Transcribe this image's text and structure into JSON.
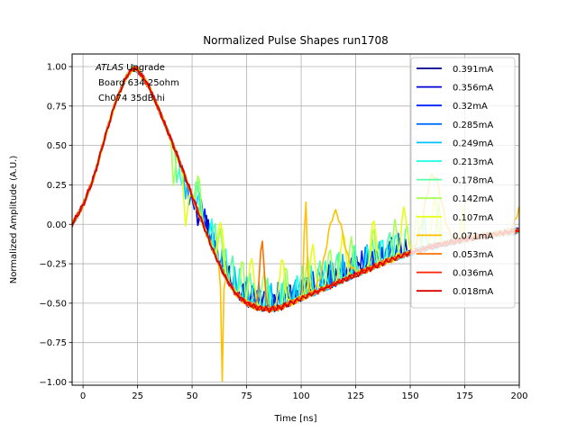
{
  "chart_data": {
    "type": "line",
    "title": "Normalized Pulse Shapes run1708",
    "xlabel": "Time [ns]",
    "ylabel": "Normalized Amplitude (A.U.)",
    "xlim": [
      -5,
      200
    ],
    "ylim": [
      -1.02,
      1.08
    ],
    "xticks": [
      0,
      25,
      50,
      75,
      100,
      125,
      150,
      175,
      200
    ],
    "yticks": [
      -1.0,
      -0.75,
      -0.5,
      -0.25,
      0.0,
      0.25,
      0.5,
      0.75,
      1.0
    ],
    "xtick_labels": [
      "0",
      "25",
      "50",
      "75",
      "100",
      "125",
      "150",
      "175",
      "200"
    ],
    "ytick_labels": [
      "−1.00",
      "−0.75",
      "−0.50",
      "−0.25",
      "0.00",
      "0.25",
      "0.50",
      "0.75",
      "1.00"
    ],
    "grid": true,
    "legend_position": "top-right",
    "annotations": [
      {
        "text": "ATLAS",
        "style": "italic"
      },
      {
        "text": " Upgrade",
        "style": "normal"
      },
      {
        "text": "Board 634 25ohm",
        "style": "normal"
      },
      {
        "text": "Ch074 35dB hi",
        "style": "normal"
      }
    ],
    "base_shape": {
      "x": [
        -5,
        0,
        5,
        10,
        15,
        20,
        23,
        25,
        30,
        35,
        40,
        45,
        50,
        55,
        60,
        65,
        70,
        75,
        80,
        85,
        90,
        95,
        100,
        110,
        120,
        130,
        140,
        150,
        160,
        170,
        180,
        190,
        200
      ],
      "y": [
        0.0,
        0.12,
        0.3,
        0.55,
        0.78,
        0.94,
        0.99,
        0.98,
        0.88,
        0.72,
        0.55,
        0.37,
        0.18,
        0.0,
        -0.18,
        -0.33,
        -0.44,
        -0.5,
        -0.53,
        -0.54,
        -0.53,
        -0.5,
        -0.47,
        -0.41,
        -0.35,
        -0.29,
        -0.23,
        -0.18,
        -0.14,
        -0.11,
        -0.08,
        -0.06,
        -0.04
      ]
    },
    "series": [
      {
        "name": "0.391mA",
        "color": "#00008f",
        "spike_start": 52,
        "spike_period": 3.5,
        "spike_depth": -0.1,
        "spike_rise": 0.12,
        "ringing_end": 150
      },
      {
        "name": "0.356mA",
        "color": "#0000d6",
        "spike_start": 52,
        "spike_period": 4.0,
        "spike_depth": -0.1,
        "spike_rise": 0.12,
        "ringing_end": 148
      },
      {
        "name": "0.32mA",
        "color": "#0020ff",
        "spike_start": 50,
        "spike_period": 4.5,
        "spike_depth": -0.12,
        "spike_rise": 0.13,
        "ringing_end": 146
      },
      {
        "name": "0.285mA",
        "color": "#0070ff",
        "spike_start": 48,
        "spike_period": 5.0,
        "spike_depth": -0.14,
        "spike_rise": 0.15,
        "ringing_end": 145
      },
      {
        "name": "0.249mA",
        "color": "#00c0ff",
        "spike_start": 46,
        "spike_period": 5.5,
        "spike_depth": -0.16,
        "spike_rise": 0.16,
        "ringing_end": 145
      },
      {
        "name": "0.213mA",
        "color": "#1affe6",
        "spike_start": 44,
        "spike_period": 6.5,
        "spike_depth": -0.18,
        "spike_rise": 0.18,
        "ringing_end": 145
      },
      {
        "name": "0.178mA",
        "color": "#53ffa6",
        "spike_start": 42,
        "spike_period": 8.0,
        "spike_depth": -0.2,
        "spike_rise": 0.2,
        "ringing_end": 160
      },
      {
        "name": "0.142mA",
        "color": "#a6ff53",
        "spike_start": 40,
        "spike_period": 10.0,
        "spike_depth": -0.25,
        "spike_rise": 0.25,
        "ringing_end": 165
      },
      {
        "name": "0.107mA",
        "color": "#e6ff1a",
        "spike_start": 45,
        "spike_period": 14.0,
        "spike_depth": -0.3,
        "spike_rise": 0.3,
        "ringing_end": 175
      },
      {
        "name": "0.071mA",
        "color": "#ffc000",
        "spike_start": 57,
        "spike_period": 45.0,
        "spike_depth": -0.72,
        "spike_rise": 0.45,
        "ringing_end": 200
      },
      {
        "name": "0.053mA",
        "color": "#ff7000",
        "spike_start": 73,
        "spike_period": 200.0,
        "spike_depth": -0.93,
        "spike_rise": -0.12,
        "ringing_end": 82
      },
      {
        "name": "0.036mA",
        "color": "#ff2000",
        "spike_start": 200,
        "spike_period": 200.0,
        "spike_depth": 0.0,
        "spike_rise": 0.0,
        "ringing_end": 0
      },
      {
        "name": "0.018mA",
        "color": "#d60000",
        "spike_start": 200,
        "spike_period": 200.0,
        "spike_depth": 0.0,
        "spike_rise": 0.0,
        "ringing_end": 0
      }
    ]
  }
}
